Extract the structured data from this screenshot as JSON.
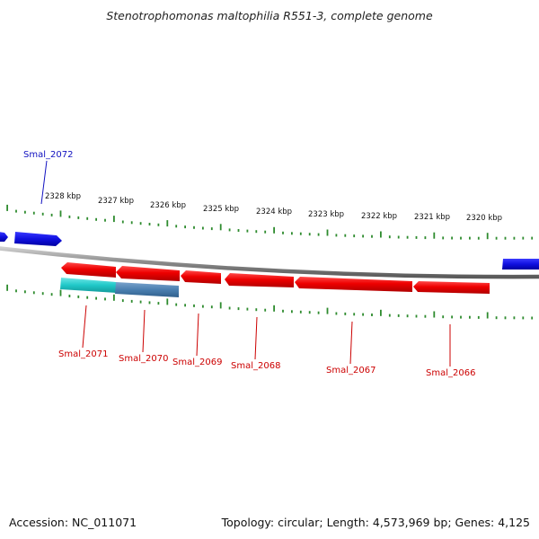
{
  "title": "Stenotrophomonas maltophilia R551-3, complete genome",
  "footer": {
    "accession": "Accession: NC_011071",
    "summary": "Topology: circular; Length: 4,573,969 bp; Genes: 4,125"
  },
  "colors": {
    "forward_gene": "#1010e0",
    "reverse_gene": "#ee0000",
    "cyan_gene": "#20c8c8",
    "steel_gene": "#4a7fb0",
    "tick": "#2e8b2e",
    "backbone": "#8a8a8a",
    "forward_label": "#1010c0",
    "reverse_label": "#cc0000"
  },
  "scale_labels": [
    "2328 kbp",
    "2327 kbp",
    "2326 kbp",
    "2325 kbp",
    "2324 kbp",
    "2323 kbp",
    "2322 kbp",
    "2321 kbp",
    "2320 kbp"
  ],
  "genes": [
    {
      "name": "Smal_2072",
      "strand": "forward"
    },
    {
      "name": "Smal_2071",
      "strand": "reverse"
    },
    {
      "name": "Smal_2070",
      "strand": "reverse"
    },
    {
      "name": "Smal_2069",
      "strand": "reverse"
    },
    {
      "name": "Smal_2068",
      "strand": "reverse"
    },
    {
      "name": "Smal_2067",
      "strand": "reverse"
    },
    {
      "name": "Smal_2066",
      "strand": "reverse"
    }
  ]
}
